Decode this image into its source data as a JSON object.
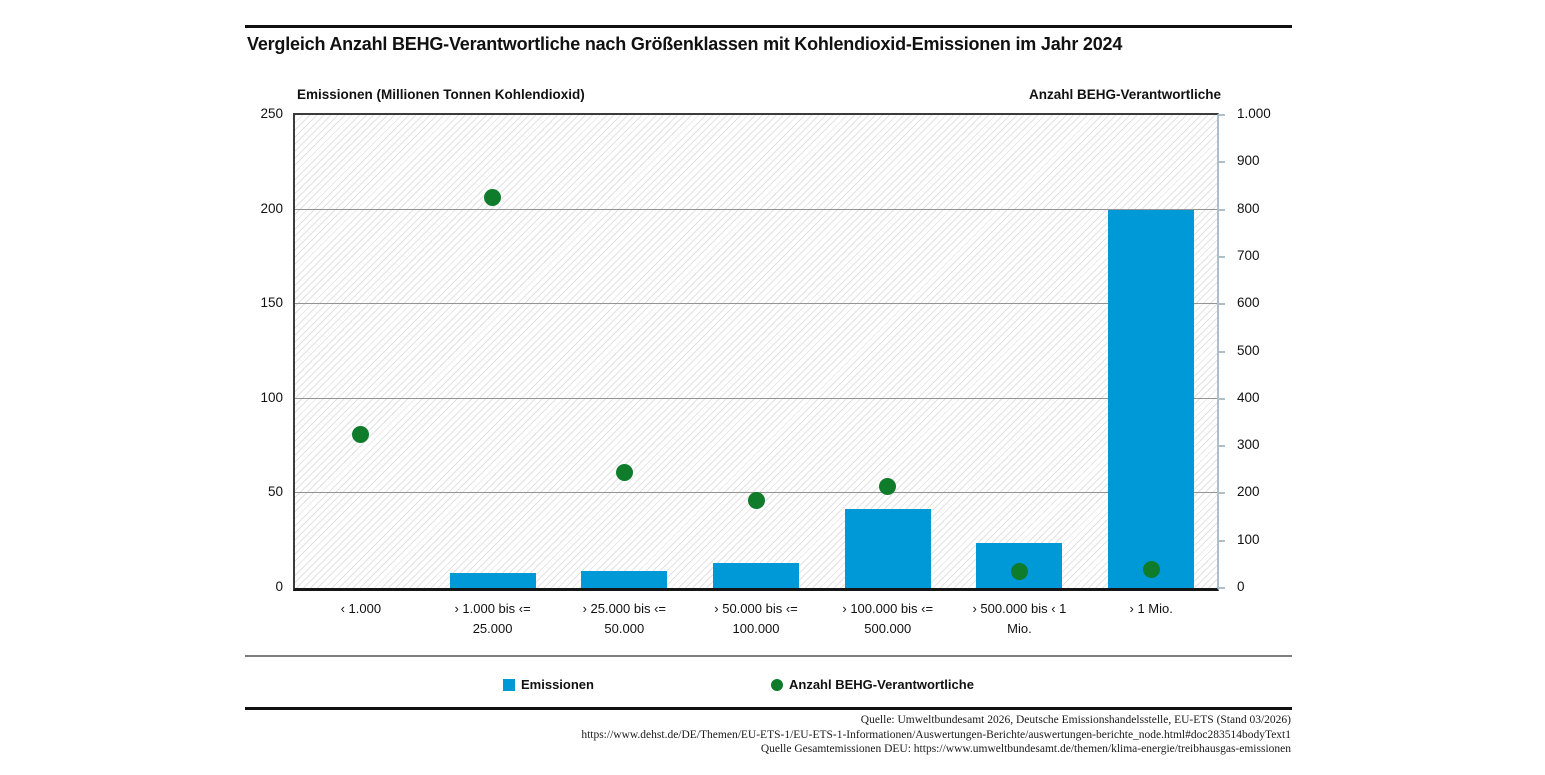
{
  "title": "Vergleich Anzahl BEHG-Verantwortliche nach Größenklassen mit Kohlendioxid-Emissionen im Jahr 2024",
  "colors": {
    "emissions_blue": "#0099d8",
    "count_green": "#0e7c2a",
    "gridline_gray": "#949494",
    "right_axis_gray_blue": "#aebfcc",
    "hatch_gray": "#e2e2e2"
  },
  "chart_data": {
    "type": "bar",
    "subtype": "bar-and-scatter-dual-axis",
    "title": "Vergleich Anzahl BEHG-Verantwortliche nach Größenklassen mit Kohlendioxid-Emissionen im Jahr 2024",
    "categories": [
      "‹ 1.000",
      "› 1.000 bis ‹= 25.000",
      "› 25.000 bis ‹= 50.000",
      "› 50.000 bis ‹= 100.000",
      "› 100.000 bis ‹= 500.000",
      "› 500.000 bis ‹ 1 Mio.",
      "› 1 Mio."
    ],
    "x_label_lines": [
      [
        "‹ 1.000",
        ""
      ],
      [
        "› 1.000 bis ‹=",
        "25.000"
      ],
      [
        "› 25.000 bis ‹=",
        "50.000"
      ],
      [
        "› 50.000 bis ‹=",
        "100.000"
      ],
      [
        "› 100.000 bis ‹=",
        "500.000"
      ],
      [
        "› 500.000 bis ‹ 1",
        "Mio."
      ],
      [
        "› 1 Mio.",
        ""
      ]
    ],
    "series": [
      {
        "name": "Emissionen",
        "type": "bar",
        "axis": "left",
        "color": "#0099d8",
        "values": [
          0,
          8,
          9,
          13,
          42,
          24,
          200
        ]
      },
      {
        "name": "Anzahl BEHG-Verantwortliche",
        "type": "scatter",
        "axis": "right",
        "color": "#0e7c2a",
        "values": [
          325,
          825,
          245,
          185,
          215,
          35,
          40
        ]
      }
    ],
    "left_axis": {
      "title": "Emissionen (Millionen Tonnen Kohlendioxid)",
      "min": 0,
      "max": 250,
      "tick_labels": [
        "250",
        "200",
        "150",
        "100",
        "50",
        "0"
      ],
      "gridline_values": [
        200,
        150,
        100,
        50
      ]
    },
    "right_axis": {
      "title": "Anzahl BEHG-Verantwortliche",
      "min": 0,
      "max": 1000,
      "tick_labels": [
        "1.000",
        "900",
        "800",
        "700",
        "600",
        "500",
        "400",
        "300",
        "200",
        "100",
        "0"
      ]
    },
    "grid": true,
    "plot_background": "diagonal-hatch",
    "legend_position": "bottom"
  },
  "legend": [
    {
      "label": "Emissionen",
      "shape": "square",
      "color": "#0099d8"
    },
    {
      "label": "Anzahl BEHG-Verantwortliche",
      "shape": "circle",
      "color": "#0e7c2a"
    }
  ],
  "source_lines": [
    "Quelle: Umweltbundesamt 2026, Deutsche Emissionshandelsstelle, EU-ETS (Stand 03/2026)",
    "https://www.dehst.de/DE/Themen/EU-ETS-1/EU-ETS-1-Informationen/Auswertungen-Berichte/auswertungen-berichte_node.html#doc283514bodyText1",
    "Quelle Gesamtemissionen DEU: https://www.umweltbundesamt.de/themen/klima-energie/treibhausgas-emissionen"
  ]
}
